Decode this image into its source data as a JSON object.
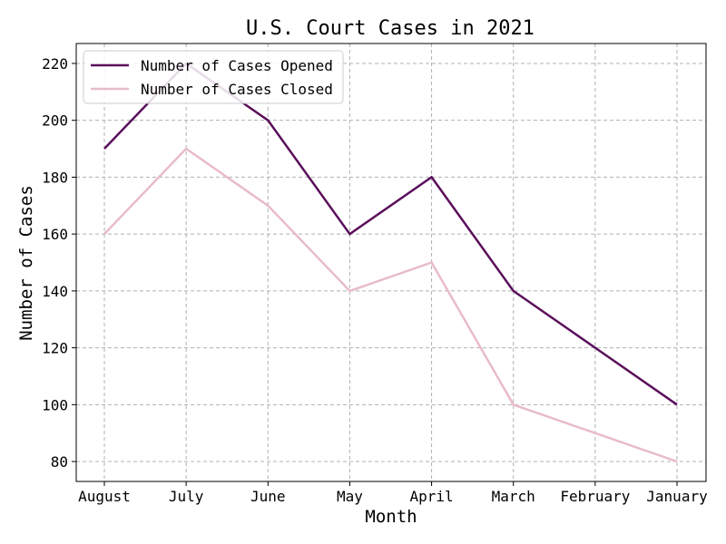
{
  "chart_data": {
    "type": "line",
    "title": "U.S. Court Cases in 2021",
    "xlabel": "Month",
    "ylabel": "Number of Cases",
    "categories": [
      "August",
      "July",
      "June",
      "May",
      "April",
      "March",
      "February",
      "January"
    ],
    "series": [
      {
        "name": "Number of Cases Opened",
        "color": "#5a0f5a",
        "values": [
          190,
          220,
          200,
          160,
          180,
          140,
          120,
          100
        ]
      },
      {
        "name": "Number of Cases Closed",
        "color": "#e8bcc8",
        "values": [
          160,
          190,
          170,
          140,
          150,
          100,
          90,
          80
        ]
      }
    ],
    "ylim": [
      73,
      227
    ],
    "yticks": [
      80,
      100,
      120,
      140,
      160,
      180,
      200,
      220
    ],
    "grid": true,
    "legend": "top-left"
  }
}
